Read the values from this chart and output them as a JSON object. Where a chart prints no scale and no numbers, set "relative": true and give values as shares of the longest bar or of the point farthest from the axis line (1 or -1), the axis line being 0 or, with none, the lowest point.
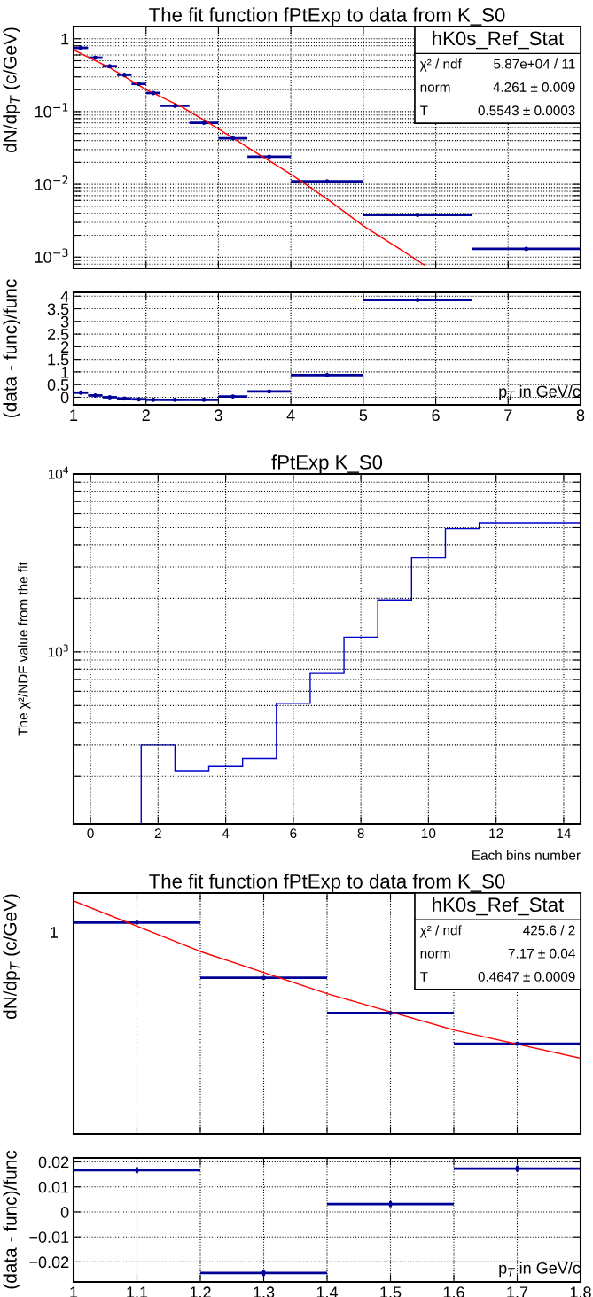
{
  "chart_data": [
    {
      "type": "scatter",
      "title": "The fit function fPtExp to data from K_S0",
      "ylabel": "dN/dp$_{T}$ (c/GeV)",
      "log": "y",
      "grid": true,
      "tick_labels": "y",
      "xlim": [
        1,
        8
      ],
      "xticks": [
        1,
        2,
        3,
        4,
        5,
        6,
        7,
        8
      ],
      "ylim": [
        0.0007,
        1.47
      ],
      "yticks": [
        {
          "value": 0.0007,
          "label": null
        },
        {
          "value": 0.0008,
          "label": null
        },
        {
          "value": 0.0009,
          "label": null
        },
        {
          "value": 0.001,
          "label": "10$^{−3}$"
        },
        {
          "value": 0.002,
          "label": null
        },
        {
          "value": 0.003,
          "label": null
        },
        {
          "value": 0.004,
          "label": null
        },
        {
          "value": 0.005,
          "label": null
        },
        {
          "value": 0.006,
          "label": null
        },
        {
          "value": 0.007,
          "label": null
        },
        {
          "value": 0.008,
          "label": null
        },
        {
          "value": 0.009,
          "label": null
        },
        {
          "value": 0.01,
          "label": "10$^{−2}$"
        },
        {
          "value": 0.02,
          "label": null
        },
        {
          "value": 0.03,
          "label": null
        },
        {
          "value": 0.04,
          "label": null
        },
        {
          "value": 0.05,
          "label": null
        },
        {
          "value": 0.06,
          "label": null
        },
        {
          "value": 0.07,
          "label": null
        },
        {
          "value": 0.08,
          "label": null
        },
        {
          "value": 0.09,
          "label": null
        },
        {
          "value": 0.1,
          "label": "10$^{−1}$"
        },
        {
          "value": 0.2,
          "label": null
        },
        {
          "value": 0.3,
          "label": null
        },
        {
          "value": 0.4,
          "label": null
        },
        {
          "value": 0.5,
          "label": null
        },
        {
          "value": 0.6,
          "label": null
        },
        {
          "value": 0.7,
          "label": null
        },
        {
          "value": 0.8,
          "label": null
        },
        {
          "value": 0.9,
          "label": null
        },
        1
      ],
      "series": [
        {
          "marker": "circle",
          "color": "#000099",
          "x": [
            1.1,
            1.3,
            1.5,
            1.7,
            1.9,
            2.1,
            2.4,
            2.8,
            3.2,
            3.7,
            4.5,
            5.75,
            7.25
          ],
          "values": [
            0.75,
            0.55,
            0.42,
            0.32,
            0.24,
            0.18,
            0.12,
            0.07,
            0.043,
            0.024,
            0.011,
            0.0038,
            0.0013
          ],
          "xerrors": [
            0.1,
            0.1,
            0.1,
            0.1,
            0.1,
            0.1,
            0.2,
            0.2,
            0.2,
            0.3,
            0.5,
            0.75,
            0.75
          ]
        },
        {
          "type": "line",
          "color": "#ff0000",
          "x": [
            1,
            1.5,
            2,
            2.5,
            3,
            3.5,
            4,
            4.5,
            5,
            5.5,
            5.85
          ],
          "values": [
            0.7,
            0.4,
            0.2,
            0.115,
            0.058,
            0.028,
            0.0138,
            0.0063,
            0.0027,
            0.0013,
            0.00077
          ]
        }
      ],
      "annotations": [
        "hK0s_Ref_Stat",
        "χ² / ndf",
        "5.87e+04 / 11",
        "norm",
        "4.261 ± 0.009",
        "T",
        "0.5543 ± 0.0003"
      ]
    },
    {
      "type": "scatter",
      "xlabel": "p$_{T}$ in GeV/c",
      "ylabel": "(data - func)/func",
      "grid": true,
      "marker": "circle",
      "xlim": [
        1,
        8
      ],
      "xticks": [
        1,
        2,
        3,
        4,
        5,
        6,
        7,
        8
      ],
      "ylim": [
        -0.3,
        4.15
      ],
      "yticks": [
        0,
        0.5,
        1,
        1.5,
        2,
        2.5,
        3,
        3.5,
        4
      ],
      "series": [
        {
          "color": "#000099",
          "x": [
            1.1,
            1.3,
            1.5,
            1.7,
            1.9,
            2.1,
            2.4,
            2.8,
            3.2,
            3.7,
            4.5,
            5.75
          ],
          "values": [
            0.18,
            0.07,
            0.0,
            -0.05,
            -0.08,
            -0.1,
            -0.1,
            -0.1,
            0.03,
            0.23,
            0.88,
            3.85
          ],
          "xerrors": [
            0.1,
            0.1,
            0.1,
            0.1,
            0.1,
            0.1,
            0.2,
            0.2,
            0.2,
            0.3,
            0.5,
            0.75
          ]
        }
      ]
    },
    {
      "type": "histogram",
      "title": "fPtExp K_S0",
      "xlabel": "Each bins number",
      "ylabel": "The χ²/NDF value from the fit",
      "log": "y",
      "grid": true,
      "xlim": [
        -0.5,
        14.5
      ],
      "xticks": [
        0,
        2,
        4,
        6,
        8,
        10,
        12,
        14
      ],
      "ylim": [
        108,
        10000
      ],
      "yticks": [
        {
          "value": 200,
          "label": null
        },
        {
          "value": 300,
          "label": null
        },
        {
          "value": 400,
          "label": null
        },
        {
          "value": 500,
          "label": null
        },
        {
          "value": 600,
          "label": null
        },
        {
          "value": 700,
          "label": null
        },
        {
          "value": 800,
          "label": null
        },
        {
          "value": 900,
          "label": null
        },
        {
          "value": 1000,
          "label": "10$^{3}$"
        },
        {
          "value": 2000,
          "label": null
        },
        {
          "value": 3000,
          "label": null
        },
        {
          "value": 4000,
          "label": null
        },
        {
          "value": 5000,
          "label": null
        },
        {
          "value": 6000,
          "label": null
        },
        {
          "value": 7000,
          "label": null
        },
        {
          "value": 8000,
          "label": null
        },
        {
          "value": 9000,
          "label": null
        },
        {
          "value": 10000,
          "label": "10$^{4}$"
        }
      ],
      "color": "#0000cc",
      "bins": [
        -0.5,
        0.5,
        1.5,
        2.5,
        3.5,
        4.5,
        5.5,
        6.5,
        7.5,
        8.5,
        9.5,
        10.5,
        11.5,
        12.5,
        13.5,
        14.5
      ],
      "values": [
        null,
        null,
        300,
        215,
        227,
        251,
        514,
        757,
        1208,
        1958,
        3381,
        4935,
        5319,
        5319,
        5319
      ]
    },
    {
      "type": "scatter",
      "title": "The fit function fPtExp to data from K_S0",
      "ylabel": "dN/dp$_{T}$ (c/GeV)",
      "relative": true,
      "grid": "x",
      "tick_labels": false,
      "xlim": [
        1,
        1.8
      ],
      "xticks": [
        1,
        1.1,
        1.2,
        1.3,
        1.4,
        1.5,
        1.6,
        1.7,
        1.8
      ],
      "series": [
        {
          "marker": "circle",
          "color": "#000099",
          "x": [
            1.1,
            1.3,
            1.5,
            1.7
          ],
          "values": [
            0.907,
            0.67,
            0.519,
            0.387
          ],
          "xerrors": [
            0.1,
            0.1,
            0.1,
            0.1
          ]
        },
        {
          "type": "line",
          "color": "#ff0000",
          "x": [
            1,
            1.2,
            1.4,
            1.6,
            1.8
          ],
          "values": [
            1,
            0.783,
            0.602,
            0.446,
            0.325
          ]
        }
      ],
      "annotations": [
        "hK0s_Ref_Stat",
        "χ² / ndf",
        "425.6 / 2",
        "norm",
        "7.17 ± 0.04",
        "T",
        "0.4647 ± 0.0009",
        "1"
      ]
    },
    {
      "type": "scatter",
      "xlabel": "p$_{T}$ in GeV/c",
      "ylabel": "(data - func)/func",
      "grid": true,
      "marker": "circle",
      "xlim": [
        1,
        1.8
      ],
      "xticks": [
        1,
        1.1,
        1.2,
        1.3,
        1.4,
        1.5,
        1.6,
        1.7,
        1.8
      ],
      "ylim": [
        -0.028,
        0.0216
      ],
      "yticks": [
        {
          "value": -0.02,
          "label": "−0.02"
        },
        {
          "value": -0.01,
          "label": "−0.01"
        },
        0,
        0.01,
        0.02
      ],
      "series": [
        {
          "color": "#000099",
          "x": [
            1.1,
            1.3,
            1.5,
            1.7
          ],
          "values": [
            0.0167,
            -0.0244,
            0.0031,
            0.0173
          ],
          "errors": [
            0.0012,
            0.0012,
            0.0012,
            0.0012
          ],
          "xerrors": [
            0.1,
            0.1,
            0.1,
            0.1
          ]
        }
      ]
    }
  ]
}
